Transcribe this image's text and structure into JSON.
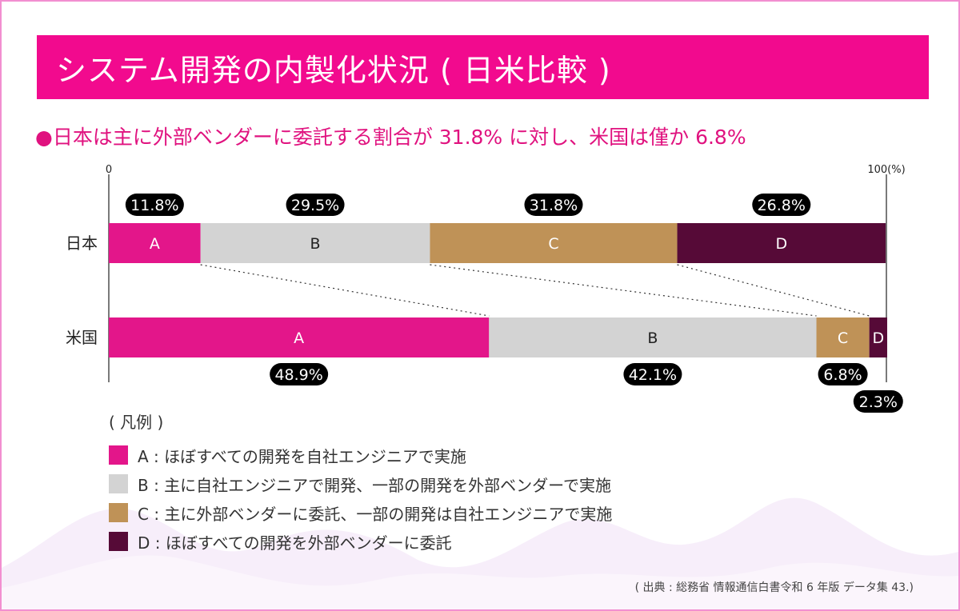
{
  "header": {
    "title": "システム開発の内製化状況 ( 日米比較 )",
    "subtitle": "●日本は主に外部ベンダーに委託する割合が 31.8% に対し、米国は僅か 6.8%"
  },
  "chart_data": {
    "type": "bar",
    "orientation": "horizontal",
    "stacked": true,
    "axis": {
      "min_label": "0",
      "max_label": "100(%)",
      "range": [
        0,
        100
      ]
    },
    "categories": [
      "日本",
      "米国"
    ],
    "series": [
      {
        "name": "A",
        "color": "#e3168a",
        "values": [
          11.8,
          48.9
        ],
        "value_labels": [
          "11.8%",
          "48.9%"
        ]
      },
      {
        "name": "B",
        "color": "#d3d3d3",
        "values": [
          29.5,
          42.1
        ],
        "value_labels": [
          "29.5%",
          "42.1%"
        ]
      },
      {
        "name": "C",
        "color": "#bf9257",
        "values": [
          31.8,
          6.8
        ],
        "value_labels": [
          "31.8%",
          "6.8%"
        ]
      },
      {
        "name": "D",
        "color": "#560a37",
        "values": [
          26.8,
          2.3
        ],
        "value_labels": [
          "26.8%",
          "2.3%"
        ]
      }
    ],
    "connectors": "dotted",
    "grid": false
  },
  "legend": {
    "title": "( 凡例 )",
    "items": [
      {
        "label": "A : ほぼすべての開発を自社エンジニアで実施",
        "color": "#e3168a"
      },
      {
        "label": "B : 主に自社エンジニアで開発、一部の開発を外部ベンダーで実施",
        "color": "#d3d3d3"
      },
      {
        "label": "C : 主に外部ベンダーに委託、一部の開発は自社エンジニアで実施",
        "color": "#bf9257"
      },
      {
        "label": "D : ほぼすべての開発を外部ベンダーに委託",
        "color": "#560a37"
      }
    ]
  },
  "footer": {
    "source": "( 出典 : 総務省 情報通信白書令和 6 年版 データ集 43.)"
  }
}
